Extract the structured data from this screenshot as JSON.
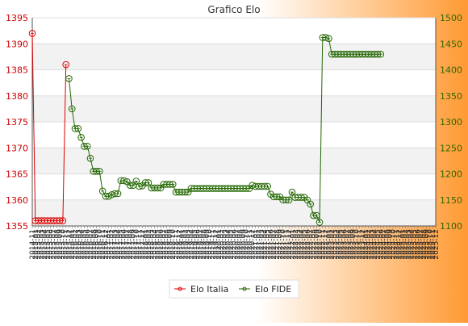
{
  "chart_data": {
    "type": "line",
    "title": "Grafico Elo",
    "background": {
      "gradient_from": "#ffffff",
      "gradient_to": "#ff9a33"
    },
    "plot_band_color": "#f2f2f2",
    "left_axis": {
      "ylim": [
        1355,
        1395
      ],
      "ticks": [
        "1355",
        "1360",
        "1365",
        "1370",
        "1375",
        "1380",
        "1385",
        "1390",
        "1395"
      ],
      "color": "#cc0000"
    },
    "right_axis": {
      "ylim": [
        1100,
        1500
      ],
      "ticks": [
        "1100",
        "1150",
        "1200",
        "1250",
        "1300",
        "1350",
        "1400",
        "1450",
        "1500"
      ],
      "color": "#336600"
    },
    "x_tick_labels": [
      "2014-11",
      "2015-01",
      "2015-02",
      "2015-03",
      "2015-04",
      "2015-05",
      "2015-06",
      "2015-07",
      "2015-08",
      "2015-09",
      "2015-10",
      "2015-11",
      "2015-12",
      "2016-01",
      "2016-02",
      "2016-03",
      "2016-04",
      "2016-05",
      "2016-06",
      "2016-07",
      "2016-08",
      "2016-09",
      "2016-10",
      "2016-11",
      "2016-12",
      "2017-01",
      "2017-02",
      "2017-03",
      "2017-04",
      "2017-05",
      "2017-06",
      "2017-07",
      "2017-08",
      "2017-09",
      "2017-10",
      "2017-11",
      "2017-12",
      "2018-01",
      "2018-02",
      "2018-03",
      "2018-04",
      "2018-05",
      "2018-06",
      "2018-07",
      "2018-08",
      "2018-09",
      "2018-10",
      "2018-11",
      "2018-12",
      "2019-01",
      "2019-02",
      "2019-03",
      "2019-04",
      "2019-05",
      "2019-06",
      "2019-07",
      "2019-08",
      "2019-09",
      "2019-10",
      "2019-11",
      "2019-12",
      "2020-01",
      "2020-02",
      "2020-03",
      "2020-04",
      "2020-05",
      "2020-06",
      "2020-07",
      "2020-08",
      "2020-09",
      "2020-10",
      "2020-11",
      "2020-12",
      "2021-01",
      "2021-02",
      "2021-03",
      "2021-04",
      "2021-05",
      "2021-06",
      "2021-07",
      "2021-08",
      "2021-09",
      "2021-10",
      "2021-11",
      "2021-12",
      "2022-01",
      "2022-02",
      "2022-03",
      "2022-04",
      "2022-05",
      "2022-06",
      "2022-07",
      "2022-08",
      "2022-09",
      "2022-10",
      "2022-11",
      "2022-12",
      "2023-01",
      "2023-02",
      "2023-03",
      "2023-04",
      "2023-05",
      "2023-06",
      "2023-07",
      "2023-08",
      "2023-09",
      "2023-10",
      "2023-11",
      "2023-12",
      "2024-01",
      "2024-02",
      "2024-03",
      "2024-04",
      "2024-05",
      "2024-06",
      "2024-07",
      "2024-08",
      "2024-09",
      "2024-10",
      "2024-11",
      "2024-12",
      "2025-01",
      "2025-02",
      "2025-03",
      "2025-04",
      "2025-05",
      "2025-06",
      "2025-07",
      "2025-08",
      "2025-09",
      "2025-10",
      "2025-11",
      "2025-12"
    ],
    "series": [
      {
        "name": "Elo Italia",
        "color": "#dd0000",
        "axis": "left",
        "points": [
          [
            0,
            1392
          ],
          [
            1,
            1356
          ],
          [
            2,
            1356
          ],
          [
            3,
            1356
          ],
          [
            4,
            1356
          ],
          [
            5,
            1356
          ],
          [
            6,
            1356
          ],
          [
            7,
            1356
          ],
          [
            8,
            1356
          ],
          [
            9,
            1356
          ],
          [
            10,
            1356
          ],
          [
            11,
            1386
          ]
        ]
      },
      {
        "name": "Elo FIDE",
        "color": "#226600",
        "axis": "right",
        "points": [
          [
            12,
            1383
          ],
          [
            13,
            1325
          ],
          [
            14,
            1287
          ],
          [
            15,
            1287
          ],
          [
            16,
            1270
          ],
          [
            17,
            1253
          ],
          [
            18,
            1253
          ],
          [
            19,
            1230
          ],
          [
            20,
            1205
          ],
          [
            21,
            1205
          ],
          [
            22,
            1205
          ],
          [
            23,
            1167
          ],
          [
            24,
            1157
          ],
          [
            25,
            1157
          ],
          [
            26,
            1160
          ],
          [
            27,
            1162
          ],
          [
            28,
            1162
          ],
          [
            29,
            1187
          ],
          [
            30,
            1187
          ],
          [
            31,
            1185
          ],
          [
            32,
            1178
          ],
          [
            33,
            1178
          ],
          [
            34,
            1186
          ],
          [
            35,
            1176
          ],
          [
            36,
            1177
          ],
          [
            37,
            1183
          ],
          [
            38,
            1183
          ],
          [
            39,
            1173
          ],
          [
            40,
            1173
          ],
          [
            41,
            1173
          ],
          [
            42,
            1173
          ],
          [
            43,
            1180
          ],
          [
            44,
            1180
          ],
          [
            45,
            1180
          ],
          [
            46,
            1180
          ],
          [
            47,
            1165
          ],
          [
            48,
            1165
          ],
          [
            49,
            1165
          ],
          [
            50,
            1165
          ],
          [
            51,
            1165
          ],
          [
            52,
            1172
          ],
          [
            53,
            1172
          ],
          [
            54,
            1172
          ],
          [
            55,
            1172
          ],
          [
            56,
            1172
          ],
          [
            57,
            1172
          ],
          [
            58,
            1172
          ],
          [
            59,
            1172
          ],
          [
            60,
            1172
          ],
          [
            61,
            1172
          ],
          [
            62,
            1172
          ],
          [
            63,
            1172
          ],
          [
            64,
            1172
          ],
          [
            65,
            1172
          ],
          [
            66,
            1172
          ],
          [
            67,
            1172
          ],
          [
            68,
            1172
          ],
          [
            69,
            1172
          ],
          [
            70,
            1172
          ],
          [
            71,
            1172
          ],
          [
            72,
            1178
          ],
          [
            73,
            1176
          ],
          [
            74,
            1176
          ],
          [
            75,
            1176
          ],
          [
            76,
            1176
          ],
          [
            77,
            1176
          ],
          [
            78,
            1161
          ],
          [
            79,
            1156
          ],
          [
            80,
            1156
          ],
          [
            81,
            1156
          ],
          [
            82,
            1150
          ],
          [
            83,
            1150
          ],
          [
            84,
            1150
          ],
          [
            85,
            1165
          ],
          [
            86,
            1155
          ],
          [
            87,
            1155
          ],
          [
            88,
            1155
          ],
          [
            89,
            1155
          ],
          [
            90,
            1150
          ],
          [
            91,
            1142
          ],
          [
            92,
            1120
          ],
          [
            93,
            1120
          ],
          [
            94,
            1107
          ],
          [
            95,
            1462
          ],
          [
            96,
            1462
          ],
          [
            97,
            1460
          ],
          [
            98,
            1430
          ],
          [
            99,
            1430
          ],
          [
            100,
            1430
          ],
          [
            101,
            1430
          ],
          [
            102,
            1430
          ],
          [
            103,
            1430
          ],
          [
            104,
            1430
          ],
          [
            105,
            1430
          ],
          [
            106,
            1430
          ],
          [
            107,
            1430
          ],
          [
            108,
            1430
          ],
          [
            109,
            1430
          ],
          [
            110,
            1430
          ],
          [
            111,
            1430
          ],
          [
            112,
            1430
          ],
          [
            113,
            1430
          ],
          [
            114,
            1430
          ]
        ]
      }
    ],
    "legend": {
      "position": "bottom-center",
      "entries": [
        {
          "label": "Elo Italia",
          "color": "#dd0000"
        },
        {
          "label": "Elo FIDE",
          "color": "#226600"
        }
      ]
    }
  }
}
